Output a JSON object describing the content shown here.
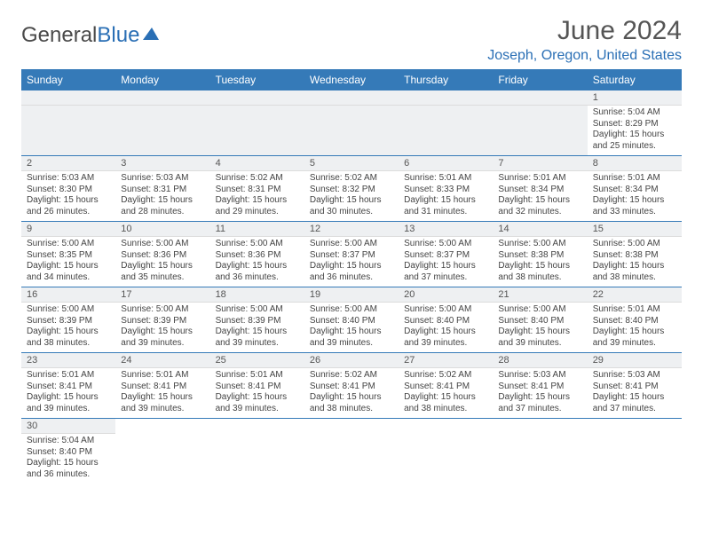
{
  "brand": {
    "part1": "General",
    "part2": "Blue"
  },
  "title": "June 2024",
  "location": "Joseph, Oregon, United States",
  "header_color": "#357ab8",
  "grid_border_color": "#357ab8",
  "daynum_bg": "#eef0f2",
  "text_color": "#444444",
  "columns": [
    "Sunday",
    "Monday",
    "Tuesday",
    "Wednesday",
    "Thursday",
    "Friday",
    "Saturday"
  ],
  "weeks": [
    [
      {
        "empty": true
      },
      {
        "empty": true
      },
      {
        "empty": true
      },
      {
        "empty": true
      },
      {
        "empty": true
      },
      {
        "empty": true
      },
      {
        "n": "1",
        "sunrise": "Sunrise: 5:04 AM",
        "sunset": "Sunset: 8:29 PM",
        "d1": "Daylight: 15 hours",
        "d2": "and 25 minutes."
      }
    ],
    [
      {
        "n": "2",
        "sunrise": "Sunrise: 5:03 AM",
        "sunset": "Sunset: 8:30 PM",
        "d1": "Daylight: 15 hours",
        "d2": "and 26 minutes."
      },
      {
        "n": "3",
        "sunrise": "Sunrise: 5:03 AM",
        "sunset": "Sunset: 8:31 PM",
        "d1": "Daylight: 15 hours",
        "d2": "and 28 minutes."
      },
      {
        "n": "4",
        "sunrise": "Sunrise: 5:02 AM",
        "sunset": "Sunset: 8:31 PM",
        "d1": "Daylight: 15 hours",
        "d2": "and 29 minutes."
      },
      {
        "n": "5",
        "sunrise": "Sunrise: 5:02 AM",
        "sunset": "Sunset: 8:32 PM",
        "d1": "Daylight: 15 hours",
        "d2": "and 30 minutes."
      },
      {
        "n": "6",
        "sunrise": "Sunrise: 5:01 AM",
        "sunset": "Sunset: 8:33 PM",
        "d1": "Daylight: 15 hours",
        "d2": "and 31 minutes."
      },
      {
        "n": "7",
        "sunrise": "Sunrise: 5:01 AM",
        "sunset": "Sunset: 8:34 PM",
        "d1": "Daylight: 15 hours",
        "d2": "and 32 minutes."
      },
      {
        "n": "8",
        "sunrise": "Sunrise: 5:01 AM",
        "sunset": "Sunset: 8:34 PM",
        "d1": "Daylight: 15 hours",
        "d2": "and 33 minutes."
      }
    ],
    [
      {
        "n": "9",
        "sunrise": "Sunrise: 5:00 AM",
        "sunset": "Sunset: 8:35 PM",
        "d1": "Daylight: 15 hours",
        "d2": "and 34 minutes."
      },
      {
        "n": "10",
        "sunrise": "Sunrise: 5:00 AM",
        "sunset": "Sunset: 8:36 PM",
        "d1": "Daylight: 15 hours",
        "d2": "and 35 minutes."
      },
      {
        "n": "11",
        "sunrise": "Sunrise: 5:00 AM",
        "sunset": "Sunset: 8:36 PM",
        "d1": "Daylight: 15 hours",
        "d2": "and 36 minutes."
      },
      {
        "n": "12",
        "sunrise": "Sunrise: 5:00 AM",
        "sunset": "Sunset: 8:37 PM",
        "d1": "Daylight: 15 hours",
        "d2": "and 36 minutes."
      },
      {
        "n": "13",
        "sunrise": "Sunrise: 5:00 AM",
        "sunset": "Sunset: 8:37 PM",
        "d1": "Daylight: 15 hours",
        "d2": "and 37 minutes."
      },
      {
        "n": "14",
        "sunrise": "Sunrise: 5:00 AM",
        "sunset": "Sunset: 8:38 PM",
        "d1": "Daylight: 15 hours",
        "d2": "and 38 minutes."
      },
      {
        "n": "15",
        "sunrise": "Sunrise: 5:00 AM",
        "sunset": "Sunset: 8:38 PM",
        "d1": "Daylight: 15 hours",
        "d2": "and 38 minutes."
      }
    ],
    [
      {
        "n": "16",
        "sunrise": "Sunrise: 5:00 AM",
        "sunset": "Sunset: 8:39 PM",
        "d1": "Daylight: 15 hours",
        "d2": "and 38 minutes."
      },
      {
        "n": "17",
        "sunrise": "Sunrise: 5:00 AM",
        "sunset": "Sunset: 8:39 PM",
        "d1": "Daylight: 15 hours",
        "d2": "and 39 minutes."
      },
      {
        "n": "18",
        "sunrise": "Sunrise: 5:00 AM",
        "sunset": "Sunset: 8:39 PM",
        "d1": "Daylight: 15 hours",
        "d2": "and 39 minutes."
      },
      {
        "n": "19",
        "sunrise": "Sunrise: 5:00 AM",
        "sunset": "Sunset: 8:40 PM",
        "d1": "Daylight: 15 hours",
        "d2": "and 39 minutes."
      },
      {
        "n": "20",
        "sunrise": "Sunrise: 5:00 AM",
        "sunset": "Sunset: 8:40 PM",
        "d1": "Daylight: 15 hours",
        "d2": "and 39 minutes."
      },
      {
        "n": "21",
        "sunrise": "Sunrise: 5:00 AM",
        "sunset": "Sunset: 8:40 PM",
        "d1": "Daylight: 15 hours",
        "d2": "and 39 minutes."
      },
      {
        "n": "22",
        "sunrise": "Sunrise: 5:01 AM",
        "sunset": "Sunset: 8:40 PM",
        "d1": "Daylight: 15 hours",
        "d2": "and 39 minutes."
      }
    ],
    [
      {
        "n": "23",
        "sunrise": "Sunrise: 5:01 AM",
        "sunset": "Sunset: 8:41 PM",
        "d1": "Daylight: 15 hours",
        "d2": "and 39 minutes."
      },
      {
        "n": "24",
        "sunrise": "Sunrise: 5:01 AM",
        "sunset": "Sunset: 8:41 PM",
        "d1": "Daylight: 15 hours",
        "d2": "and 39 minutes."
      },
      {
        "n": "25",
        "sunrise": "Sunrise: 5:01 AM",
        "sunset": "Sunset: 8:41 PM",
        "d1": "Daylight: 15 hours",
        "d2": "and 39 minutes."
      },
      {
        "n": "26",
        "sunrise": "Sunrise: 5:02 AM",
        "sunset": "Sunset: 8:41 PM",
        "d1": "Daylight: 15 hours",
        "d2": "and 38 minutes."
      },
      {
        "n": "27",
        "sunrise": "Sunrise: 5:02 AM",
        "sunset": "Sunset: 8:41 PM",
        "d1": "Daylight: 15 hours",
        "d2": "and 38 minutes."
      },
      {
        "n": "28",
        "sunrise": "Sunrise: 5:03 AM",
        "sunset": "Sunset: 8:41 PM",
        "d1": "Daylight: 15 hours",
        "d2": "and 37 minutes."
      },
      {
        "n": "29",
        "sunrise": "Sunrise: 5:03 AM",
        "sunset": "Sunset: 8:41 PM",
        "d1": "Daylight: 15 hours",
        "d2": "and 37 minutes."
      }
    ],
    [
      {
        "n": "30",
        "sunrise": "Sunrise: 5:04 AM",
        "sunset": "Sunset: 8:40 PM",
        "d1": "Daylight: 15 hours",
        "d2": "and 36 minutes."
      },
      {
        "empty": true
      },
      {
        "empty": true
      },
      {
        "empty": true
      },
      {
        "empty": true
      },
      {
        "empty": true
      },
      {
        "empty": true
      }
    ]
  ]
}
